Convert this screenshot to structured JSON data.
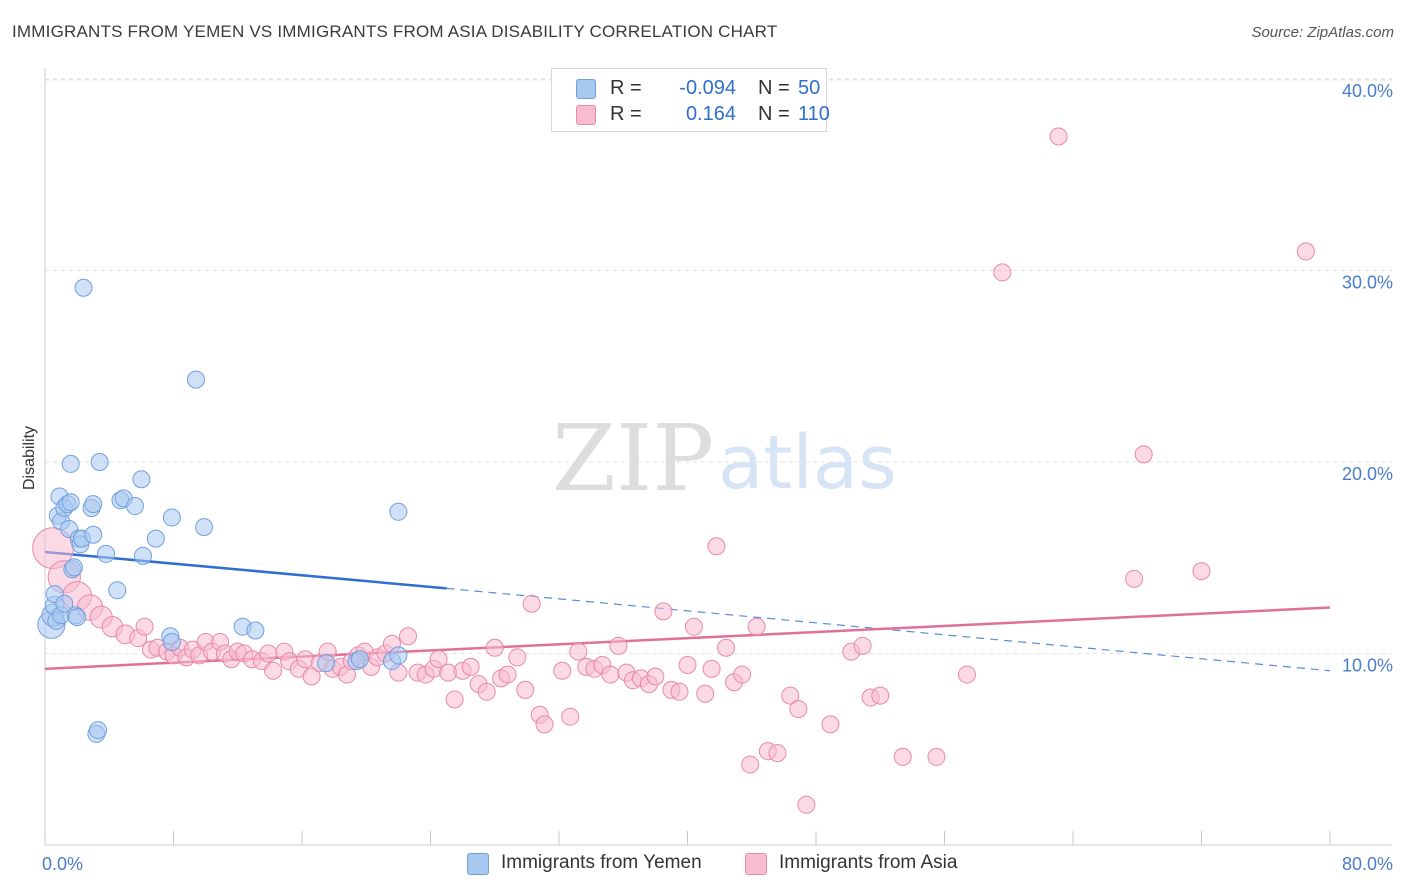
{
  "title": "IMMIGRANTS FROM YEMEN VS IMMIGRANTS FROM ASIA DISABILITY CORRELATION CHART",
  "source": "Source: ZipAtlas.com",
  "watermark": {
    "zip": "ZIP",
    "atlas": "atlas"
  },
  "legend": {
    "r_label": "R =",
    "n_label": "N =",
    "rows": [
      {
        "r": "-0.094",
        "n": "50",
        "color": "#a9c8f0",
        "border": "#6fa0e0"
      },
      {
        "r": "0.164",
        "n": "110",
        "color": "#f7bcd0",
        "border": "#e889aa"
      }
    ]
  },
  "bottom_legend": [
    "Immigrants from Yemen",
    "Immigrants from Asia"
  ],
  "colors": {
    "blue_fill": "#a9c8f0",
    "blue_stroke": "#6fa0e0",
    "blue_line": "#2f6fd0",
    "pink_fill": "#f7bcd0",
    "pink_stroke": "#e889aa",
    "pink_line": "#e0709a",
    "tick_text": "#4a7cc9"
  },
  "chart_data": {
    "type": "scatter",
    "title": "IMMIGRANTS FROM YEMEN VS IMMIGRANTS FROM ASIA DISABILITY CORRELATION CHART",
    "xlabel": "",
    "ylabel": "Disability",
    "xlim": [
      0,
      80
    ],
    "ylim": [
      0,
      42
    ],
    "x_tick_labels": [
      "0.0%",
      "80.0%"
    ],
    "y_ticks": [
      10,
      20,
      30,
      40
    ],
    "y_tick_labels": [
      "10.0%",
      "20.0%",
      "30.0%",
      "40.0%"
    ],
    "grid": "horizontal dashed",
    "legend_position": "top-center",
    "series": [
      {
        "name": "Immigrants from Yemen",
        "r": -0.094,
        "n": 50,
        "trend": {
          "x": [
            0,
            25,
            80
          ],
          "y": [
            15.3,
            13.4,
            9.1
          ],
          "solid_until": 25
        },
        "points": [
          [
            0.4,
            11.5,
            1.6
          ],
          [
            0.5,
            12.0,
            1.3
          ],
          [
            0.6,
            12.5,
            1.1
          ],
          [
            0.6,
            13.1,
            1.0
          ],
          [
            0.7,
            11.7,
            1.0
          ],
          [
            0.8,
            17.2,
            1.0
          ],
          [
            0.9,
            18.2,
            1.0
          ],
          [
            1.0,
            16.9,
            1.0
          ],
          [
            1.0,
            12.0,
            1.0
          ],
          [
            1.2,
            12.6,
            1.0
          ],
          [
            1.2,
            17.6,
            1.0
          ],
          [
            1.4,
            17.8,
            1.0
          ],
          [
            1.5,
            16.5,
            1.0
          ],
          [
            1.6,
            19.9,
            1.0
          ],
          [
            1.6,
            17.9,
            1.0
          ],
          [
            1.7,
            14.4,
            1.0
          ],
          [
            1.8,
            14.5,
            1.0
          ],
          [
            1.9,
            12.0,
            1.0
          ],
          [
            2.0,
            11.9,
            1.0
          ],
          [
            2.1,
            16.0,
            1.0
          ],
          [
            2.2,
            15.7,
            1.0
          ],
          [
            2.3,
            16.0,
            1.0
          ],
          [
            2.4,
            29.1,
            1.0
          ],
          [
            2.9,
            17.6,
            1.0
          ],
          [
            3.0,
            17.8,
            1.0
          ],
          [
            3.0,
            16.2,
            1.0
          ],
          [
            3.2,
            5.8,
            1.0
          ],
          [
            3.3,
            6.0,
            1.0
          ],
          [
            3.4,
            20.0,
            1.0
          ],
          [
            3.8,
            15.2,
            1.0
          ],
          [
            4.5,
            13.3,
            1.0
          ],
          [
            4.7,
            18.0,
            1.0
          ],
          [
            4.9,
            18.1,
            1.0
          ],
          [
            5.6,
            17.7,
            1.0
          ],
          [
            6.0,
            19.1,
            1.0
          ],
          [
            6.1,
            15.1,
            1.0
          ],
          [
            6.9,
            16.0,
            1.0
          ],
          [
            7.8,
            10.9,
            1.0
          ],
          [
            7.9,
            10.6,
            1.0
          ],
          [
            7.9,
            17.1,
            1.0
          ],
          [
            9.4,
            24.3,
            1.0
          ],
          [
            9.9,
            16.6,
            1.0
          ],
          [
            12.3,
            11.4,
            1.0
          ],
          [
            13.1,
            11.2,
            1.0
          ],
          [
            17.5,
            9.5,
            1.0
          ],
          [
            19.4,
            9.6,
            1.0
          ],
          [
            19.6,
            9.7,
            1.0
          ],
          [
            21.6,
            9.6,
            1.0
          ],
          [
            22.0,
            9.9,
            1.0
          ],
          [
            22.0,
            17.4,
            1.0
          ]
        ]
      },
      {
        "name": "Immigrants from Asia",
        "r": 0.164,
        "n": 110,
        "trend": {
          "x": [
            0,
            80
          ],
          "y": [
            9.2,
            12.4
          ]
        },
        "points": [
          [
            0.5,
            15.5,
            2.4
          ],
          [
            1.2,
            14.0,
            1.9
          ],
          [
            2.0,
            13.0,
            1.7
          ],
          [
            2.8,
            12.4,
            1.5
          ],
          [
            3.5,
            11.9,
            1.3
          ],
          [
            4.2,
            11.4,
            1.2
          ],
          [
            5.0,
            11.0,
            1.1
          ],
          [
            5.8,
            10.8,
            1.0
          ],
          [
            6.2,
            11.4,
            1.0
          ],
          [
            6.6,
            10.2,
            1.0
          ],
          [
            7.0,
            10.3,
            1.0
          ],
          [
            7.6,
            10.1,
            1.0
          ],
          [
            8.0,
            9.9,
            1.0
          ],
          [
            8.4,
            10.3,
            1.0
          ],
          [
            8.8,
            9.8,
            1.0
          ],
          [
            9.2,
            10.2,
            1.0
          ],
          [
            9.6,
            9.9,
            1.0
          ],
          [
            10.0,
            10.6,
            1.0
          ],
          [
            10.4,
            10.1,
            1.0
          ],
          [
            10.9,
            10.6,
            1.0
          ],
          [
            11.2,
            10.0,
            1.0
          ],
          [
            11.6,
            9.7,
            1.0
          ],
          [
            12.0,
            10.1,
            1.0
          ],
          [
            12.4,
            10.0,
            1.0
          ],
          [
            12.9,
            9.7,
            1.0
          ],
          [
            13.5,
            9.6,
            1.0
          ],
          [
            13.9,
            10.0,
            1.0
          ],
          [
            14.2,
            9.1,
            1.0
          ],
          [
            14.9,
            10.1,
            1.0
          ],
          [
            15.2,
            9.6,
            1.0
          ],
          [
            15.8,
            9.2,
            1.0
          ],
          [
            16.2,
            9.7,
            1.0
          ],
          [
            16.6,
            8.8,
            1.0
          ],
          [
            17.1,
            9.5,
            1.0
          ],
          [
            17.6,
            10.1,
            1.0
          ],
          [
            17.9,
            9.2,
            1.0
          ],
          [
            18.4,
            9.3,
            1.0
          ],
          [
            18.8,
            8.9,
            1.0
          ],
          [
            19.1,
            9.6,
            1.0
          ],
          [
            19.5,
            9.9,
            1.0
          ],
          [
            19.9,
            10.1,
            1.0
          ],
          [
            20.3,
            9.3,
            1.0
          ],
          [
            20.7,
            9.8,
            1.0
          ],
          [
            21.2,
            10.0,
            1.0
          ],
          [
            21.6,
            10.5,
            1.0
          ],
          [
            22.0,
            9.0,
            1.0
          ],
          [
            22.6,
            10.9,
            1.0
          ],
          [
            23.2,
            9.0,
            1.0
          ],
          [
            23.7,
            8.9,
            1.0
          ],
          [
            24.2,
            9.2,
            1.0
          ],
          [
            24.5,
            9.7,
            1.0
          ],
          [
            25.1,
            9.0,
            1.0
          ],
          [
            25.5,
            7.6,
            1.0
          ],
          [
            26.0,
            9.1,
            1.0
          ],
          [
            26.5,
            9.3,
            1.0
          ],
          [
            27.0,
            8.4,
            1.0
          ],
          [
            27.5,
            8.0,
            1.0
          ],
          [
            28.0,
            10.3,
            1.0
          ],
          [
            28.4,
            8.7,
            1.0
          ],
          [
            28.8,
            8.9,
            1.0
          ],
          [
            29.4,
            9.8,
            1.0
          ],
          [
            29.9,
            8.1,
            1.0
          ],
          [
            30.3,
            12.6,
            1.0
          ],
          [
            30.8,
            6.8,
            1.0
          ],
          [
            31.1,
            6.3,
            1.0
          ],
          [
            32.2,
            9.1,
            1.0
          ],
          [
            32.7,
            6.7,
            1.0
          ],
          [
            33.2,
            10.1,
            1.0
          ],
          [
            33.7,
            9.3,
            1.0
          ],
          [
            34.2,
            9.2,
            1.0
          ],
          [
            34.7,
            9.4,
            1.0
          ],
          [
            35.2,
            8.9,
            1.0
          ],
          [
            35.7,
            10.4,
            1.0
          ],
          [
            36.2,
            9.0,
            1.0
          ],
          [
            36.6,
            8.6,
            1.0
          ],
          [
            37.1,
            8.7,
            1.0
          ],
          [
            37.6,
            8.4,
            1.0
          ],
          [
            38.0,
            8.8,
            1.0
          ],
          [
            38.5,
            12.2,
            1.0
          ],
          [
            39.0,
            8.1,
            1.0
          ],
          [
            39.5,
            8.0,
            1.0
          ],
          [
            40.0,
            9.4,
            1.0
          ],
          [
            40.4,
            11.4,
            1.0
          ],
          [
            41.1,
            7.9,
            1.0
          ],
          [
            41.5,
            9.2,
            1.0
          ],
          [
            41.8,
            15.6,
            1.0
          ],
          [
            42.4,
            10.3,
            1.0
          ],
          [
            42.9,
            8.5,
            1.0
          ],
          [
            43.4,
            8.9,
            1.0
          ],
          [
            43.9,
            4.2,
            1.0
          ],
          [
            44.3,
            11.4,
            1.0
          ],
          [
            45.0,
            4.9,
            1.0
          ],
          [
            45.6,
            4.8,
            1.0
          ],
          [
            46.4,
            7.8,
            1.0
          ],
          [
            46.9,
            7.1,
            1.0
          ],
          [
            47.4,
            2.1,
            1.0
          ],
          [
            48.9,
            6.3,
            1.0
          ],
          [
            50.2,
            10.1,
            1.0
          ],
          [
            50.9,
            10.4,
            1.0
          ],
          [
            51.4,
            7.7,
            1.0
          ],
          [
            52.0,
            7.8,
            1.0
          ],
          [
            53.4,
            4.6,
            1.0
          ],
          [
            55.5,
            4.6,
            1.0
          ],
          [
            57.4,
            8.9,
            1.0
          ],
          [
            59.6,
            29.9,
            1.0
          ],
          [
            63.1,
            37.0,
            1.0
          ],
          [
            67.8,
            13.9,
            1.0
          ],
          [
            68.4,
            20.4,
            1.0
          ],
          [
            72.0,
            14.3,
            1.0
          ],
          [
            78.5,
            31.0,
            1.0
          ]
        ]
      }
    ]
  }
}
